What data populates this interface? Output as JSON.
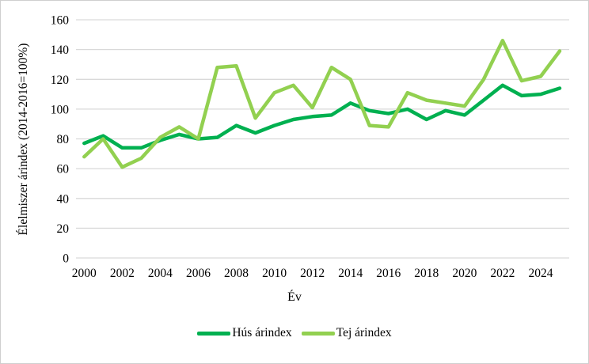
{
  "frame": {
    "background": "#ffffff",
    "border_color": "#cfcfcf"
  },
  "chart_data": {
    "type": "line",
    "title": "",
    "xlabel": "Év",
    "ylabel": "Élelmiszer árindex (2014-2016=100%)",
    "x": [
      2000,
      2001,
      2002,
      2003,
      2004,
      2005,
      2006,
      2007,
      2008,
      2009,
      2010,
      2011,
      2012,
      2013,
      2014,
      2015,
      2016,
      2017,
      2018,
      2019,
      2020,
      2021,
      2022,
      2023,
      2024,
      2025
    ],
    "x_tick_labels": [
      "2000",
      "2002",
      "2004",
      "2006",
      "2008",
      "2010",
      "2012",
      "2014",
      "2016",
      "2018",
      "2020",
      "2022",
      "2024"
    ],
    "ylim": [
      0,
      160
    ],
    "y_ticks": [
      0,
      20,
      40,
      60,
      80,
      100,
      120,
      140,
      160
    ],
    "grid": "horizontal-only",
    "gridline_color": "#d9d9d9",
    "legend_position": "bottom-center",
    "series": [
      {
        "name": "Hús árindex",
        "color": "#00b050",
        "values": [
          77,
          82,
          74,
          74,
          79,
          83,
          80,
          81,
          89,
          84,
          89,
          93,
          95,
          96,
          104,
          99,
          97,
          100,
          93,
          99,
          96,
          106,
          116,
          109,
          110,
          114
        ]
      },
      {
        "name": "Tej árindex",
        "color": "#92d050",
        "values": [
          68,
          80,
          61,
          67,
          81,
          88,
          80,
          128,
          129,
          94,
          111,
          116,
          101,
          128,
          120,
          89,
          88,
          111,
          106,
          104,
          102,
          120,
          146,
          119,
          122,
          139
        ]
      }
    ]
  }
}
